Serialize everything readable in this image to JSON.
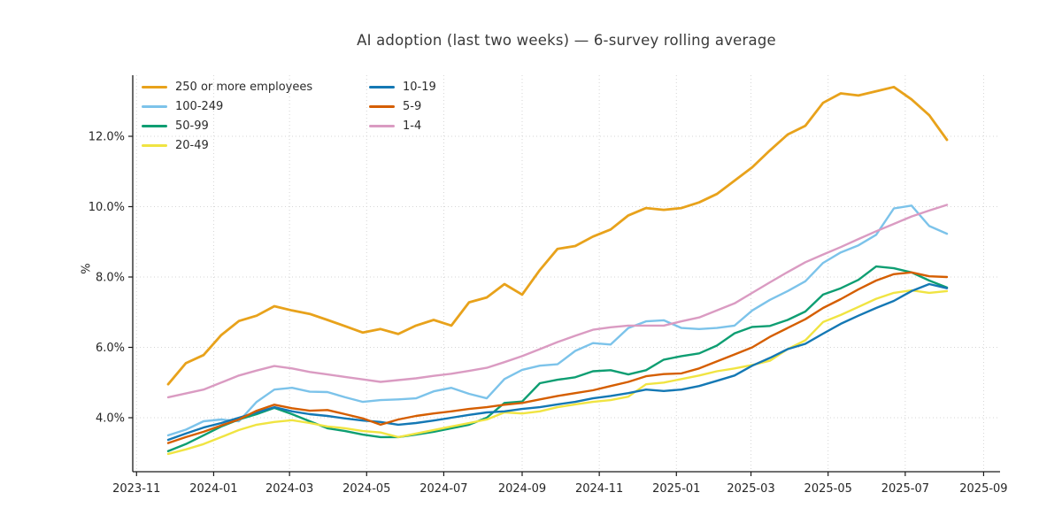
{
  "chart_data": {
    "type": "line",
    "title": "AI adoption (last two weeks) — 6-survey rolling average",
    "ylabel": "%",
    "grid": true,
    "legend_position": "upper-left, two columns, no frame",
    "ylim": [
      2.45,
      13.75
    ],
    "xlim_days": [
      -3,
      683
    ],
    "y_ticks": [
      {
        "value": 4,
        "label": "4.0%"
      },
      {
        "value": 6,
        "label": "6.0%"
      },
      {
        "value": 8,
        "label": "8.0%"
      },
      {
        "value": 10,
        "label": "10.0%"
      },
      {
        "value": 12,
        "label": "12.0%"
      }
    ],
    "x_ticks": [
      {
        "day": 0,
        "label": "2023-11"
      },
      {
        "day": 61,
        "label": "2024-01"
      },
      {
        "day": 121,
        "label": "2024-03"
      },
      {
        "day": 182,
        "label": "2024-05"
      },
      {
        "day": 243,
        "label": "2024-07"
      },
      {
        "day": 305,
        "label": "2024-09"
      },
      {
        "day": 366,
        "label": "2024-11"
      },
      {
        "day": 427,
        "label": "2025-01"
      },
      {
        "day": 486,
        "label": "2025-03"
      },
      {
        "day": 547,
        "label": "2025-05"
      },
      {
        "day": 608,
        "label": "2025-07"
      },
      {
        "day": 670,
        "label": "2025-09"
      }
    ],
    "points_start_day": 25,
    "points_step_days": 14,
    "legend_columns": [
      [
        "250 or more employees",
        "100-249",
        "50-99",
        "20-49"
      ],
      [
        "10-19",
        "5-9",
        "1-4"
      ]
    ],
    "series": [
      {
        "name": "250 or more employees",
        "color": "#E8A21B",
        "lw": 2.8,
        "values": [
          4.95,
          5.55,
          5.78,
          6.35,
          6.75,
          6.9,
          7.17,
          7.05,
          6.95,
          6.78,
          6.6,
          6.42,
          6.52,
          6.38,
          6.62,
          6.78,
          6.62,
          7.28,
          7.42,
          7.8,
          7.5,
          8.2,
          8.8,
          8.88,
          9.15,
          9.35,
          9.75,
          9.96,
          9.91,
          9.96,
          10.12,
          10.36,
          10.74,
          11.12,
          11.6,
          12.05,
          12.3,
          12.95,
          13.22,
          13.16,
          13.28,
          13.4,
          13.05,
          12.6,
          11.9
        ]
      },
      {
        "name": "100-249",
        "color": "#7CC3EA",
        "lw": 2.4,
        "values": [
          3.5,
          3.66,
          3.9,
          3.95,
          3.9,
          4.45,
          4.8,
          4.85,
          4.74,
          4.73,
          4.58,
          4.45,
          4.5,
          4.52,
          4.55,
          4.75,
          4.85,
          4.68,
          4.55,
          5.1,
          5.36,
          5.48,
          5.52,
          5.9,
          6.12,
          6.08,
          6.55,
          6.74,
          6.77,
          6.55,
          6.52,
          6.55,
          6.62,
          7.05,
          7.35,
          7.6,
          7.88,
          8.4,
          8.7,
          8.9,
          9.2,
          9.95,
          10.03,
          9.45,
          9.23
        ]
      },
      {
        "name": "50-99",
        "color": "#0E9E72",
        "lw": 2.4,
        "values": [
          3.05,
          3.25,
          3.5,
          3.75,
          3.95,
          4.1,
          4.28,
          4.1,
          3.9,
          3.7,
          3.62,
          3.52,
          3.45,
          3.45,
          3.52,
          3.6,
          3.7,
          3.8,
          4.0,
          4.42,
          4.46,
          4.98,
          5.08,
          5.15,
          5.32,
          5.35,
          5.23,
          5.35,
          5.65,
          5.75,
          5.83,
          6.05,
          6.4,
          6.58,
          6.61,
          6.78,
          7.02,
          7.5,
          7.68,
          7.92,
          8.3,
          8.25,
          8.13,
          7.9,
          7.7
        ]
      },
      {
        "name": "20-49",
        "color": "#F0E442",
        "lw": 2.4,
        "values": [
          2.97,
          3.1,
          3.25,
          3.45,
          3.65,
          3.8,
          3.88,
          3.93,
          3.85,
          3.75,
          3.7,
          3.62,
          3.58,
          3.45,
          3.55,
          3.65,
          3.75,
          3.85,
          3.95,
          4.15,
          4.12,
          4.18,
          4.3,
          4.38,
          4.45,
          4.5,
          4.6,
          4.95,
          5.0,
          5.1,
          5.2,
          5.32,
          5.4,
          5.5,
          5.62,
          5.95,
          6.2,
          6.72,
          6.92,
          7.15,
          7.38,
          7.55,
          7.62,
          7.55,
          7.6
        ]
      },
      {
        "name": "10-19",
        "color": "#1478B4",
        "lw": 2.4,
        "values": [
          3.37,
          3.55,
          3.72,
          3.85,
          4.0,
          4.15,
          4.3,
          4.18,
          4.1,
          4.05,
          3.98,
          3.92,
          3.88,
          3.8,
          3.85,
          3.92,
          4.0,
          4.08,
          4.15,
          4.18,
          4.25,
          4.3,
          4.38,
          4.45,
          4.55,
          4.62,
          4.7,
          4.8,
          4.76,
          4.8,
          4.9,
          5.05,
          5.2,
          5.48,
          5.7,
          5.95,
          6.1,
          6.39,
          6.67,
          6.9,
          7.12,
          7.32,
          7.6,
          7.8,
          7.68
        ]
      },
      {
        "name": "5-9",
        "color": "#D55E00",
        "lw": 2.4,
        "values": [
          3.28,
          3.45,
          3.6,
          3.78,
          3.95,
          4.2,
          4.37,
          4.27,
          4.2,
          4.22,
          4.1,
          3.98,
          3.8,
          3.95,
          4.05,
          4.12,
          4.18,
          4.25,
          4.3,
          4.37,
          4.42,
          4.52,
          4.62,
          4.7,
          4.78,
          4.9,
          5.02,
          5.18,
          5.24,
          5.26,
          5.4,
          5.6,
          5.8,
          6.0,
          6.3,
          6.55,
          6.8,
          7.12,
          7.37,
          7.65,
          7.9,
          8.08,
          8.13,
          8.02,
          8.0
        ]
      },
      {
        "name": "1-4",
        "color": "#DA9BC2",
        "lw": 2.4,
        "values": [
          4.58,
          4.69,
          4.8,
          5.0,
          5.2,
          5.34,
          5.47,
          5.4,
          5.3,
          5.23,
          5.16,
          5.09,
          5.02,
          5.07,
          5.12,
          5.19,
          5.25,
          5.33,
          5.42,
          5.58,
          5.75,
          5.95,
          6.15,
          6.33,
          6.5,
          6.57,
          6.62,
          6.62,
          6.62,
          6.74,
          6.85,
          7.05,
          7.25,
          7.55,
          7.85,
          8.14,
          8.42,
          8.64,
          8.85,
          9.08,
          9.3,
          9.51,
          9.72,
          9.89,
          10.05
        ]
      }
    ]
  }
}
